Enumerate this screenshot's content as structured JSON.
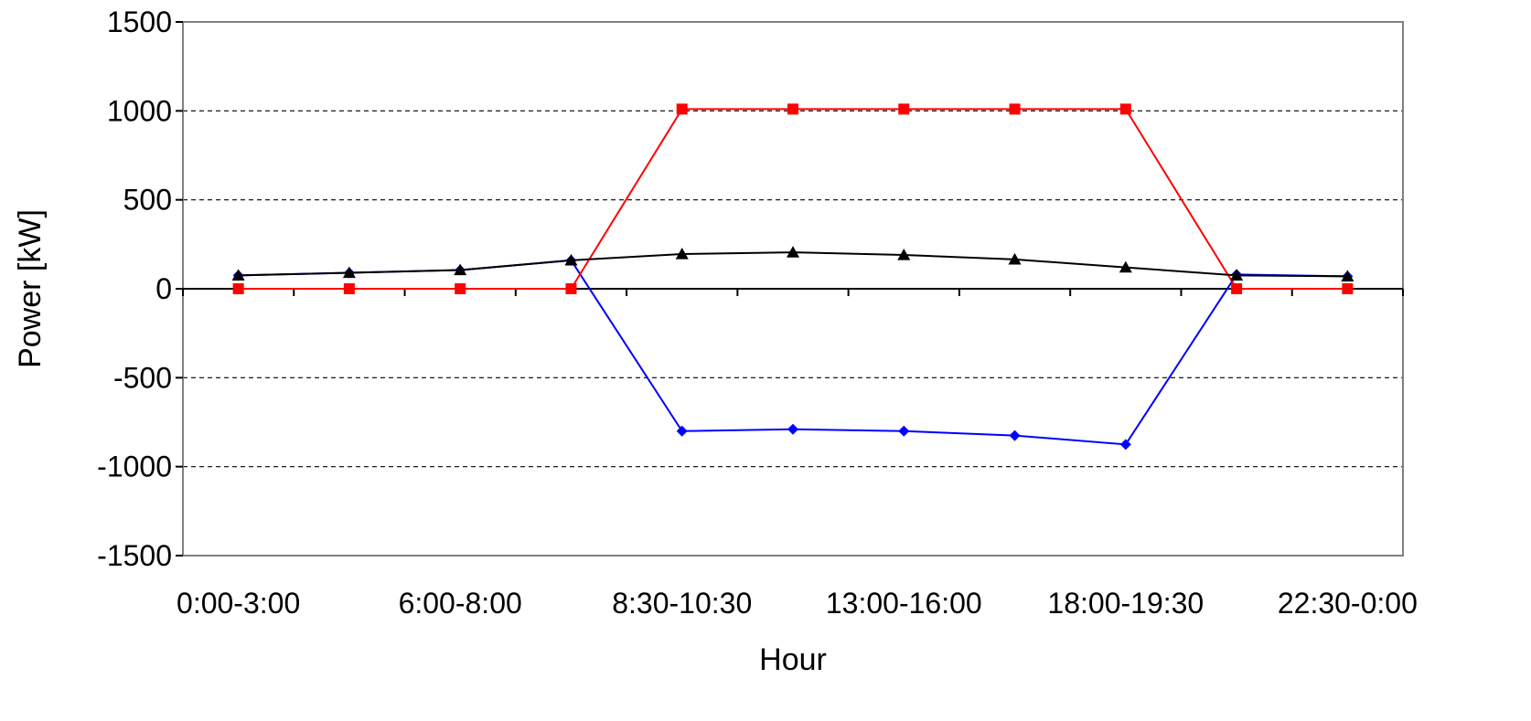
{
  "chart_data": {
    "type": "line",
    "xlabel": "Hour",
    "ylabel": "Power [kW]",
    "ylim": [
      -1500,
      1500
    ],
    "yticks": [
      1500,
      1000,
      500,
      0,
      -500,
      -1000,
      -1500
    ],
    "categories": [
      "0:00-3:00",
      "",
      "6:00-8:00",
      "",
      "8:30-10:30",
      "",
      "13:00-16:00",
      "",
      "18:00-19:30",
      "",
      "22:30-0:00"
    ],
    "grid": "horizontal dashed",
    "series": [
      {
        "color": "#0000ff",
        "marker": "diamond",
        "values": [
          75,
          90,
          105,
          160,
          -800,
          -790,
          -800,
          -825,
          -875,
          80,
          70
        ]
      },
      {
        "color": "#ff0000",
        "marker": "square",
        "values": [
          0,
          0,
          0,
          0,
          1010,
          1010,
          1010,
          1010,
          1010,
          0,
          0
        ]
      },
      {
        "color": "#000000",
        "marker": "triangle",
        "values": [
          75,
          90,
          105,
          160,
          195,
          205,
          190,
          165,
          120,
          75,
          70
        ]
      }
    ]
  }
}
